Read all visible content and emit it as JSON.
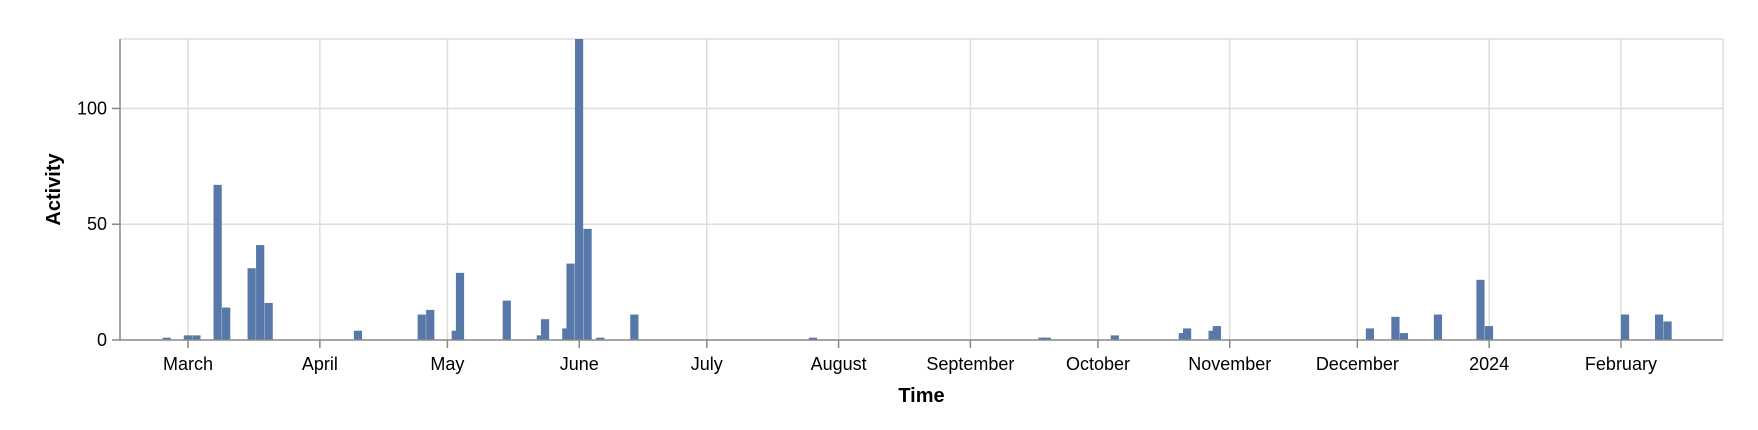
{
  "chart_data": {
    "type": "bar",
    "title": "",
    "xlabel": "Time",
    "ylabel": "Activity",
    "ylim": [
      0,
      130
    ],
    "y_ticks": [
      0,
      50,
      100
    ],
    "grid": true,
    "bar_color": "#5778a9",
    "x_domain_start": "2023-02-13",
    "x_domain_end": "2024-02-25",
    "x_ticks": [
      {
        "label": "March",
        "date": "2023-03-01"
      },
      {
        "label": "April",
        "date": "2023-04-01"
      },
      {
        "label": "May",
        "date": "2023-05-01"
      },
      {
        "label": "June",
        "date": "2023-06-01"
      },
      {
        "label": "July",
        "date": "2023-07-01"
      },
      {
        "label": "August",
        "date": "2023-08-01"
      },
      {
        "label": "September",
        "date": "2023-09-01"
      },
      {
        "label": "October",
        "date": "2023-10-01"
      },
      {
        "label": "November",
        "date": "2023-11-01"
      },
      {
        "label": "December",
        "date": "2023-12-01"
      },
      {
        "label": "2024",
        "date": "2024-01-01"
      },
      {
        "label": "February",
        "date": "2024-02-01"
      }
    ],
    "bin_days": 2,
    "bars": [
      {
        "date": "2023-02-23",
        "value": 1
      },
      {
        "date": "2023-02-28",
        "value": 2
      },
      {
        "date": "2023-03-02",
        "value": 2
      },
      {
        "date": "2023-03-07",
        "value": 67
      },
      {
        "date": "2023-03-09",
        "value": 14
      },
      {
        "date": "2023-03-15",
        "value": 31
      },
      {
        "date": "2023-03-17",
        "value": 41
      },
      {
        "date": "2023-03-19",
        "value": 16
      },
      {
        "date": "2023-04-09",
        "value": 4
      },
      {
        "date": "2023-04-24",
        "value": 11
      },
      {
        "date": "2023-04-26",
        "value": 13
      },
      {
        "date": "2023-05-02",
        "value": 4
      },
      {
        "date": "2023-05-03",
        "value": 29
      },
      {
        "date": "2023-05-14",
        "value": 17
      },
      {
        "date": "2023-05-22",
        "value": 2
      },
      {
        "date": "2023-05-23",
        "value": 9
      },
      {
        "date": "2023-05-28",
        "value": 5
      },
      {
        "date": "2023-05-29",
        "value": 33
      },
      {
        "date": "2023-05-31",
        "value": 130
      },
      {
        "date": "2023-06-02",
        "value": 48
      },
      {
        "date": "2023-06-05",
        "value": 1
      },
      {
        "date": "2023-06-13",
        "value": 11
      },
      {
        "date": "2023-07-25",
        "value": 1
      },
      {
        "date": "2023-09-17",
        "value": 1
      },
      {
        "date": "2023-09-18",
        "value": 1
      },
      {
        "date": "2023-10-04",
        "value": 2
      },
      {
        "date": "2023-10-20",
        "value": 3
      },
      {
        "date": "2023-10-21",
        "value": 5
      },
      {
        "date": "2023-10-27",
        "value": 4
      },
      {
        "date": "2023-10-28",
        "value": 6
      },
      {
        "date": "2023-12-03",
        "value": 5
      },
      {
        "date": "2023-12-09",
        "value": 10
      },
      {
        "date": "2023-12-11",
        "value": 3
      },
      {
        "date": "2023-12-19",
        "value": 11
      },
      {
        "date": "2023-12-29",
        "value": 26
      },
      {
        "date": "2023-12-31",
        "value": 6
      },
      {
        "date": "2024-02-01",
        "value": 11
      },
      {
        "date": "2024-02-09",
        "value": 11
      },
      {
        "date": "2024-02-11",
        "value": 8
      }
    ]
  }
}
